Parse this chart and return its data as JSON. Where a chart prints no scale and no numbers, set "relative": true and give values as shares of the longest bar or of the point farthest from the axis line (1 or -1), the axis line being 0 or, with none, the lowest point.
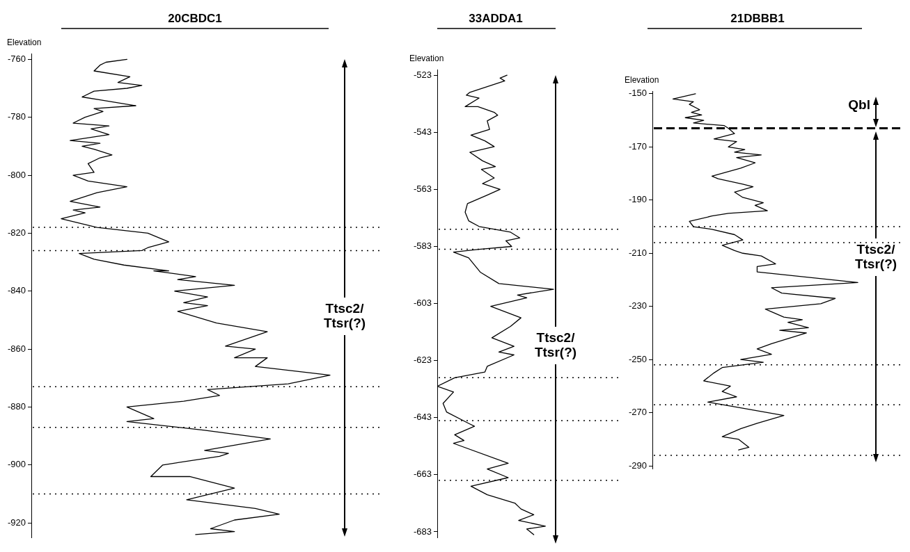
{
  "chart_data": [
    {
      "type": "line",
      "orientation": "horizontal",
      "relative": true,
      "title": "20CBDC1",
      "ylabel": "Elevation",
      "ylim": [
        -925,
        -758
      ],
      "yticks": [
        -760,
        -780,
        -800,
        -820,
        -840,
        -860,
        -880,
        -900,
        -920
      ],
      "color": "#000000",
      "marker": "none",
      "x": [
        -760,
        -761,
        -762,
        -764,
        -766,
        -768,
        -769,
        -770,
        -771,
        -773,
        -774,
        -776,
        -777,
        -778,
        -780,
        -782,
        -783,
        -784,
        -786,
        -788,
        -789,
        -790,
        -791,
        -793,
        -794,
        -796,
        -799,
        -800,
        -802,
        -804,
        -806,
        -809,
        -811,
        -812,
        -813,
        -815,
        -818,
        -820,
        -823,
        -825,
        -826,
        -827,
        -829,
        -831,
        -833,
        -833,
        -835,
        -836,
        -838,
        -840,
        -842,
        -844,
        -845,
        -847,
        -851,
        -854,
        -859,
        -860,
        -863,
        -863,
        -866,
        -869,
        -872,
        -874,
        -876,
        -878,
        -880,
        -884,
        -885,
        -888,
        -891,
        -895,
        -896,
        -897,
        -900,
        -904,
        -904,
        -908,
        -912,
        -915,
        -917,
        -919,
        -922,
        -923,
        -924
      ],
      "values": [
        0.32,
        0.25,
        0.23,
        0.21,
        0.33,
        0.29,
        0.37,
        0.32,
        0.21,
        0.17,
        0.23,
        0.35,
        0.21,
        0.24,
        0.18,
        0.14,
        0.26,
        0.2,
        0.26,
        0.13,
        0.23,
        0.17,
        0.21,
        0.27,
        0.23,
        0.19,
        0.21,
        0.14,
        0.19,
        0.32,
        0.22,
        0.13,
        0.23,
        0.14,
        0.18,
        0.1,
        0.22,
        0.39,
        0.46,
        0.39,
        0.37,
        0.16,
        0.21,
        0.31,
        0.46,
        0.41,
        0.55,
        0.49,
        0.68,
        0.48,
        0.59,
        0.51,
        0.59,
        0.49,
        0.62,
        0.79,
        0.65,
        0.75,
        0.68,
        0.79,
        0.75,
        1,
        0.86,
        0.59,
        0.63,
        0.51,
        0.32,
        0.41,
        0.32,
        0.58,
        0.8,
        0.58,
        0.66,
        0.63,
        0.44,
        0.4,
        0.53,
        0.68,
        0.52,
        0.75,
        0.83,
        0.68,
        0.6,
        0.68,
        0.55
      ],
      "ref_lines": [
        {
          "axis": "y",
          "value": -818,
          "line_style": "dotted"
        },
        {
          "axis": "y",
          "value": -826,
          "line_style": "dotted"
        },
        {
          "axis": "y",
          "value": -873,
          "line_style": "dotted"
        },
        {
          "axis": "y",
          "value": -887,
          "line_style": "dotted"
        },
        {
          "axis": "y",
          "value": -910,
          "line_style": "dotted"
        }
      ],
      "annotations": [
        "Ttsc2/Ttsr(?)"
      ]
    },
    {
      "type": "line",
      "orientation": "horizontal",
      "relative": true,
      "title": "33ADDA1",
      "ylabel": "Elevation",
      "ylim": [
        -685,
        -521
      ],
      "yticks": [
        -523,
        -543,
        -563,
        -583,
        -603,
        -623,
        -643,
        -663,
        -683
      ],
      "color": "#000000",
      "marker": "none",
      "x": [
        -523,
        -524,
        -525,
        -527,
        -529,
        -530,
        -531,
        -534,
        -534,
        -536,
        -537,
        -539,
        -542,
        -544,
        -546,
        -548,
        -550,
        -553,
        -555,
        -556,
        -559,
        -561,
        -563,
        -565,
        -568,
        -571,
        -574,
        -576,
        -578,
        -580,
        -581,
        -583,
        -584,
        -585,
        -587,
        -592,
        -596,
        -598,
        -600,
        -601,
        -604,
        -608,
        -611,
        -615,
        -618,
        -620,
        -621,
        -625,
        -627,
        -629,
        -632,
        -634,
        -638,
        -641,
        -645,
        -646,
        -649,
        -651,
        -652,
        -659,
        -661,
        -664,
        -667,
        -670,
        -673,
        -675,
        -677,
        -679,
        -681,
        -682,
        -684
      ],
      "values": [
        0.6,
        0.54,
        0.58,
        0.43,
        0.28,
        0.25,
        0.36,
        0.24,
        0.35,
        0.49,
        0.52,
        0.43,
        0.45,
        0.29,
        0.41,
        0.49,
        0.28,
        0.39,
        0.5,
        0.38,
        0.49,
        0.39,
        0.54,
        0.43,
        0.26,
        0.24,
        0.27,
        0.36,
        0.63,
        0.71,
        0.59,
        0.64,
        0.36,
        0.14,
        0.27,
        0.37,
        0.53,
        1,
        0.69,
        0.77,
        0.46,
        0.72,
        0.63,
        0.47,
        0.66,
        0.53,
        0.66,
        0.43,
        0.41,
        0.15,
        0,
        0.14,
        0.05,
        0.08,
        0.27,
        0.32,
        0.15,
        0.23,
        0.14,
        0.61,
        0.43,
        0.61,
        0.29,
        0.43,
        0.67,
        0.72,
        0.83,
        0.7,
        0.93,
        0.77,
        0.83
      ],
      "ref_lines": [
        {
          "axis": "y",
          "value": -577,
          "line_style": "dotted"
        },
        {
          "axis": "y",
          "value": -584,
          "line_style": "dotted"
        },
        {
          "axis": "y",
          "value": -629,
          "line_style": "dotted"
        },
        {
          "axis": "y",
          "value": -644,
          "line_style": "dotted"
        },
        {
          "axis": "y",
          "value": -665,
          "line_style": "dotted"
        }
      ],
      "annotations": [
        "Ttsc2/Ttsr(?)"
      ]
    },
    {
      "type": "line",
      "orientation": "horizontal",
      "relative": true,
      "title": "21DBBB1",
      "ylabel": "Elevation",
      "ylim": [
        -291,
        -149
      ],
      "yticks": [
        -150,
        -170,
        -190,
        -210,
        -230,
        -250,
        -270,
        -290
      ],
      "color": "#000000",
      "marker": "none",
      "x": [
        -150,
        -152,
        -153,
        -154,
        -156,
        -157,
        -158,
        -159,
        -160,
        -161,
        -162,
        -163,
        -165,
        -167,
        -168,
        -170,
        -171,
        -172,
        -173,
        -174,
        -176,
        -178,
        -181,
        -182,
        -184,
        -185,
        -187,
        -189,
        -191,
        -192,
        -194,
        -195,
        -196,
        -198,
        -200,
        -201,
        -203,
        -205,
        -207,
        -209,
        -210,
        -211,
        -214,
        -215,
        -217,
        -221,
        -223,
        -225,
        -227,
        -229,
        -231,
        -234,
        -235,
        -236,
        -238,
        -239,
        -240,
        -244,
        -246,
        -248,
        -250,
        -251,
        -253,
        -255,
        -258,
        -260,
        -262,
        -264,
        -266,
        -268,
        -271,
        -274,
        -276,
        -279,
        -280,
        -283,
        -284
      ],
      "values": [
        0.21,
        0.1,
        0.2,
        0.18,
        0.23,
        0.19,
        0.24,
        0.16,
        0.25,
        0.2,
        0.35,
        0.37,
        0.4,
        0.3,
        0.41,
        0.37,
        0.45,
        0.4,
        0.53,
        0.41,
        0.5,
        0.43,
        0.29,
        0.32,
        0.44,
        0.49,
        0.4,
        0.44,
        0.54,
        0.5,
        0.56,
        0.37,
        0.29,
        0.18,
        0.2,
        0.29,
        0.4,
        0.44,
        0.34,
        0.4,
        0.44,
        0.53,
        0.6,
        0.51,
        0.51,
        1,
        0.58,
        0.63,
        0.89,
        0.82,
        0.55,
        0.64,
        0.73,
        0.66,
        0.76,
        0.62,
        0.75,
        0.58,
        0.51,
        0.58,
        0.43,
        0.54,
        0.34,
        0.3,
        0.25,
        0.38,
        0.34,
        0.41,
        0.27,
        0.42,
        0.64,
        0.51,
        0.43,
        0.34,
        0.42,
        0.47,
        0.42
      ],
      "ref_lines": [
        {
          "axis": "y",
          "value": -163,
          "line_style": "dashed"
        },
        {
          "axis": "y",
          "value": -200,
          "line_style": "dotted"
        },
        {
          "axis": "y",
          "value": -206,
          "line_style": "dotted"
        },
        {
          "axis": "y",
          "value": -252,
          "line_style": "dotted"
        },
        {
          "axis": "y",
          "value": -267,
          "line_style": "dotted"
        },
        {
          "axis": "y",
          "value": -286,
          "line_style": "dotted"
        }
      ],
      "annotations": [
        "Qbl",
        "Ttsc2/Ttsr(?)"
      ]
    }
  ]
}
